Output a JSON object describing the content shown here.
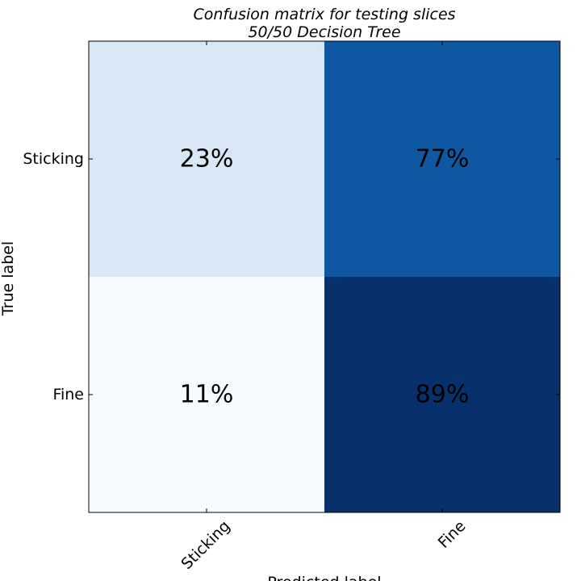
{
  "chart_data": {
    "type": "heatmap",
    "title": "Confusion matrix for testing slices",
    "subtitle": "50/50 Decision Tree",
    "xlabel": "Predicted label",
    "ylabel": "True label",
    "x_categories": [
      "Sticking",
      "Fine"
    ],
    "y_categories": [
      "Sticking",
      "Fine"
    ],
    "values": [
      [
        0.23,
        0.77
      ],
      [
        0.11,
        0.89
      ]
    ],
    "cell_labels": [
      [
        "23%",
        "77%"
      ],
      [
        "11%",
        "89%"
      ]
    ],
    "colormap": "Blues",
    "colors": {
      "low": "#f7fbff",
      "high": "#08306b"
    },
    "grid": false
  }
}
